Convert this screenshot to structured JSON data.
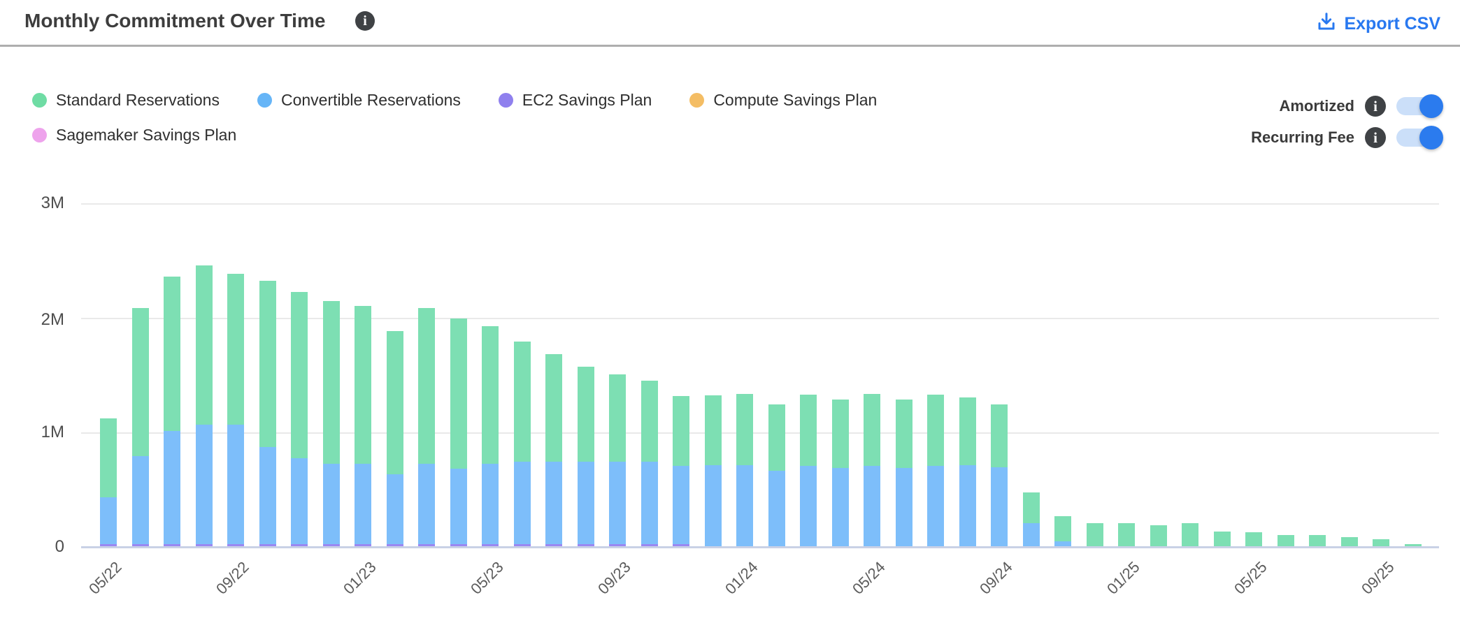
{
  "header": {
    "title": "Monthly Commitment Over Time",
    "export_label": "Export CSV"
  },
  "legend": {
    "items": [
      {
        "label": "Standard Reservations",
        "color": "#6fdca4"
      },
      {
        "label": "Convertible Reservations",
        "color": "#66b5f7"
      },
      {
        "label": "EC2 Savings Plan",
        "color": "#8f80ee"
      },
      {
        "label": "Compute Savings Plan",
        "color": "#f4bd64"
      },
      {
        "label": "Sagemaker Savings Plan",
        "color": "#eea3ec"
      }
    ]
  },
  "controls": {
    "toggles": [
      {
        "label": "Amortized",
        "state": "on"
      },
      {
        "label": "Recurring Fee",
        "state": "on"
      }
    ]
  },
  "colors": {
    "accent_blue": "#2878f0",
    "toggle_track": "#cbdff9",
    "toggle_knob": "#2b7bee",
    "info_icon_bg": "#3f4245",
    "gridline": "#e9e9e9",
    "axis_baseline": "#c9d1e6"
  },
  "chart_data": {
    "type": "bar",
    "stacked": true,
    "title": "Monthly Commitment Over Time",
    "xlabel": "",
    "ylabel": "",
    "y_ticks": [
      "3M",
      "2M",
      "1M",
      "0"
    ],
    "ylim_millions": [
      0,
      3
    ],
    "grid": "horizontal",
    "legend_position": "top-left",
    "x_tick_labels": [
      "05/22",
      "09/22",
      "01/23",
      "05/23",
      "09/23",
      "01/24",
      "05/24",
      "09/24",
      "01/25",
      "05/25",
      "09/25"
    ],
    "categories": [
      "05/22",
      "06/22",
      "07/22",
      "08/22",
      "09/22",
      "10/22",
      "11/22",
      "12/22",
      "01/23",
      "02/23",
      "03/23",
      "04/23",
      "05/23",
      "06/23",
      "07/23",
      "08/23",
      "09/23",
      "10/23",
      "11/23",
      "12/23",
      "01/24",
      "02/24",
      "03/24",
      "04/24",
      "05/24",
      "06/24",
      "07/24",
      "08/24",
      "09/24",
      "10/24",
      "11/24",
      "12/24",
      "01/25",
      "02/25",
      "03/25",
      "04/25",
      "05/25",
      "06/25",
      "07/25",
      "08/25",
      "09/25",
      "10/25"
    ],
    "series": [
      {
        "name": "Standard Reservations",
        "color": "#7ddfb3",
        "values_millions": [
          0.69,
          1.29,
          1.35,
          1.39,
          1.32,
          1.45,
          1.45,
          1.42,
          1.38,
          1.25,
          1.36,
          1.31,
          1.2,
          1.05,
          0.94,
          0.83,
          0.76,
          0.71,
          0.61,
          0.61,
          0.62,
          0.58,
          0.62,
          0.6,
          0.63,
          0.6,
          0.62,
          0.59,
          0.55,
          0.27,
          0.22,
          0.2,
          0.2,
          0.18,
          0.2,
          0.13,
          0.12,
          0.1,
          0.1,
          0.08,
          0.06,
          0.02
        ]
      },
      {
        "name": "Convertible Reservations",
        "color": "#7dbefa",
        "values_millions": [
          0.41,
          0.77,
          0.99,
          1.04,
          1.04,
          0.85,
          0.75,
          0.7,
          0.7,
          0.61,
          0.7,
          0.66,
          0.7,
          0.72,
          0.72,
          0.72,
          0.72,
          0.72,
          0.68,
          0.71,
          0.71,
          0.66,
          0.7,
          0.68,
          0.7,
          0.68,
          0.7,
          0.71,
          0.69,
          0.2,
          0.04,
          0,
          0,
          0,
          0,
          0,
          0,
          0,
          0,
          0,
          0,
          0
        ]
      },
      {
        "name": "EC2 Savings Plan",
        "color": "#9a88f2",
        "values_millions": [
          0.02,
          0.02,
          0.02,
          0.02,
          0.02,
          0.02,
          0.02,
          0.02,
          0.02,
          0.02,
          0.02,
          0.02,
          0.02,
          0.02,
          0.02,
          0.02,
          0.02,
          0.02,
          0.02,
          0,
          0,
          0,
          0,
          0,
          0,
          0,
          0,
          0,
          0,
          0,
          0,
          0,
          0,
          0,
          0,
          0,
          0,
          0,
          0,
          0,
          0,
          0
        ]
      },
      {
        "name": "Compute Savings Plan",
        "color": "#f4bd64",
        "values_millions": [
          0,
          0,
          0,
          0,
          0,
          0,
          0,
          0,
          0,
          0,
          0,
          0,
          0,
          0,
          0,
          0,
          0,
          0,
          0,
          0,
          0,
          0,
          0,
          0,
          0,
          0,
          0,
          0,
          0,
          0,
          0,
          0,
          0,
          0,
          0,
          0,
          0,
          0,
          0,
          0,
          0,
          0
        ]
      },
      {
        "name": "Sagemaker Savings Plan",
        "color": "#eea3ec",
        "values_millions": [
          0,
          0,
          0,
          0,
          0,
          0,
          0,
          0,
          0,
          0,
          0,
          0,
          0,
          0,
          0,
          0,
          0,
          0,
          0,
          0,
          0,
          0,
          0,
          0,
          0,
          0,
          0,
          0,
          0,
          0,
          0,
          0,
          0,
          0,
          0,
          0,
          0,
          0,
          0,
          0,
          0,
          0
        ]
      }
    ]
  }
}
